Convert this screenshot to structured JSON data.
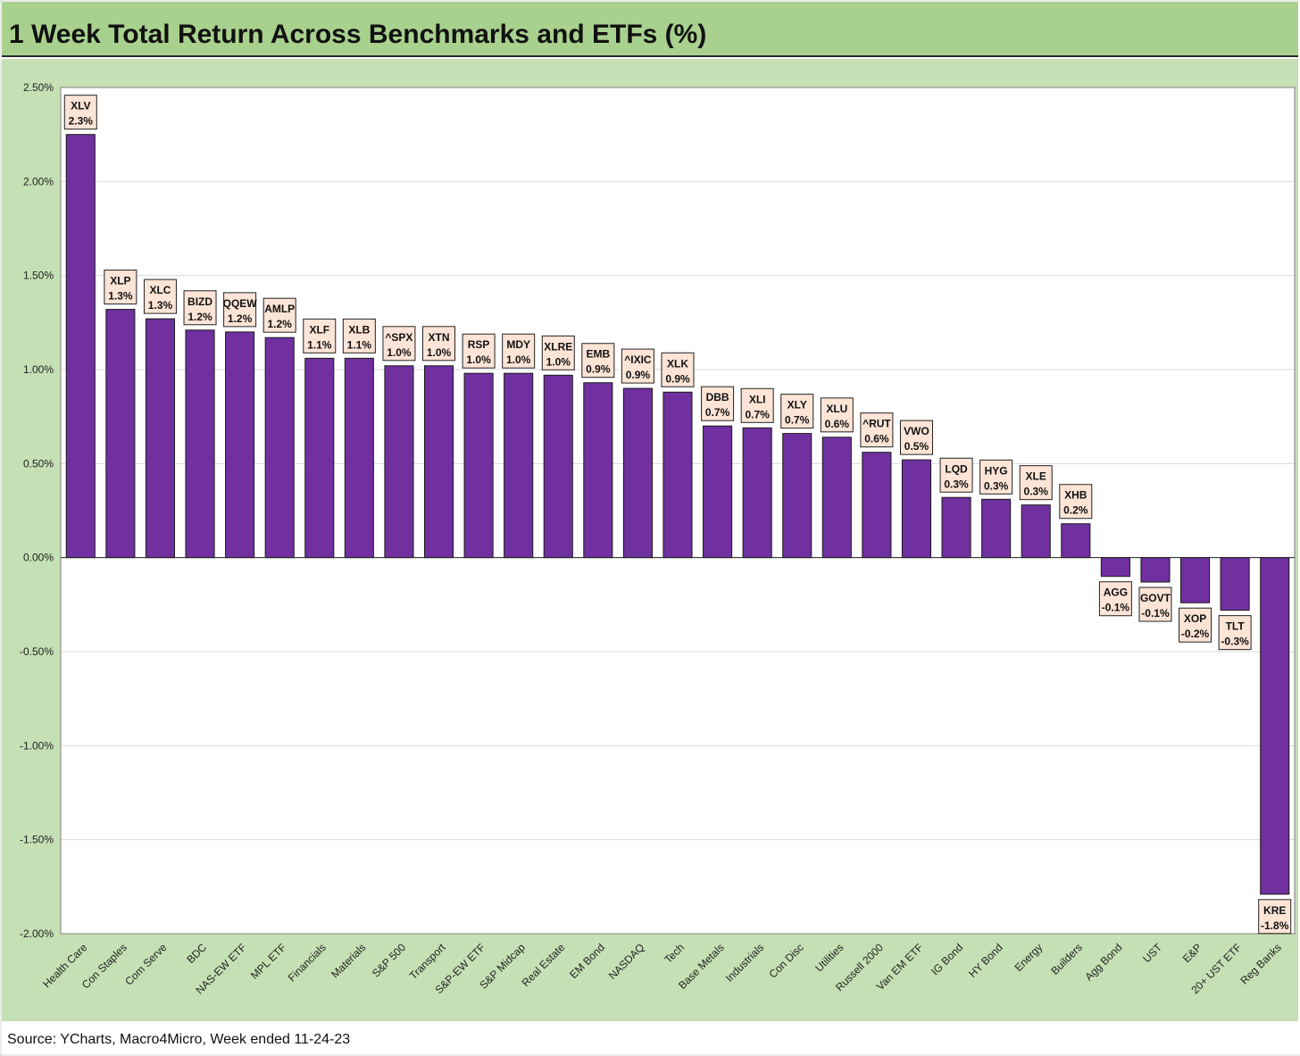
{
  "title": "1 Week Total Return Across Benchmarks and ETFs (%)",
  "source": "Source: YCharts, Macro4Micro, Week ended 11-24-23",
  "colors": {
    "title_bar": "#a9d18e",
    "chart_background": "#c5e0b4",
    "plot_background": "#ffffff",
    "bar": "#7030a0",
    "label_box": "#fce4d6"
  },
  "chart_data": {
    "type": "bar",
    "title": "1 Week Total Return Across Benchmarks and ETFs (%)",
    "xlabel": "",
    "ylabel": "",
    "ylim": [
      -2.0,
      2.5
    ],
    "grid": true,
    "legend": "none",
    "y_ticks": [
      "2.50%",
      "2.00%",
      "1.50%",
      "1.00%",
      "0.50%",
      "0.00%",
      "-0.50%",
      "-1.00%",
      "-1.50%",
      "-2.00%"
    ],
    "y_tick_values": [
      2.5,
      2.0,
      1.5,
      1.0,
      0.5,
      0.0,
      -0.5,
      -1.0,
      -1.5,
      -2.0
    ],
    "categories": [
      "Health Care",
      "Con Staples",
      "Com Serve",
      "BDC",
      "NAS-EW ETF",
      "MPL ETF",
      "Financials",
      "Materials",
      "S&P 500",
      "Transport",
      "S&P-EW ETF",
      "S&P Midcap",
      "Real Estate",
      "EM Bond",
      "NASDAQ",
      "Tech",
      "Base Metals",
      "Industrials",
      "Con Disc",
      "Utilities",
      "Russell 2000",
      "Van EM ETF",
      "IG Bond",
      "HY Bond",
      "Energy",
      "Builders",
      "Agg Bond",
      "UST",
      "E&P",
      "20+ UST ETF",
      "Reg Banks"
    ],
    "tickers": [
      "XLV",
      "XLP",
      "XLC",
      "BIZD",
      "QQEW",
      "AMLP",
      "XLF",
      "XLB",
      "^SPX",
      "XTN",
      "RSP",
      "MDY",
      "XLRE",
      "EMB",
      "^IXIC",
      "XLK",
      "DBB",
      "XLI",
      "XLY",
      "XLU",
      "^RUT",
      "VWO",
      "LQD",
      "HYG",
      "XLE",
      "XHB",
      "AGG",
      "GOVT",
      "XOP",
      "TLT",
      "KRE"
    ],
    "data_labels": [
      "2.3%",
      "1.3%",
      "1.3%",
      "1.2%",
      "1.2%",
      "1.2%",
      "1.1%",
      "1.1%",
      "1.0%",
      "1.0%",
      "1.0%",
      "1.0%",
      "1.0%",
      "0.9%",
      "0.9%",
      "0.9%",
      "0.7%",
      "0.7%",
      "0.7%",
      "0.6%",
      "0.6%",
      "0.5%",
      "0.3%",
      "0.3%",
      "0.3%",
      "0.2%",
      "-0.1%",
      "-0.1%",
      "-0.2%",
      "-0.3%",
      "-1.8%"
    ],
    "values": [
      2.25,
      1.32,
      1.27,
      1.21,
      1.2,
      1.17,
      1.06,
      1.06,
      1.02,
      1.02,
      0.98,
      0.98,
      0.97,
      0.93,
      0.9,
      0.88,
      0.7,
      0.69,
      0.66,
      0.64,
      0.56,
      0.52,
      0.32,
      0.31,
      0.28,
      0.18,
      -0.1,
      -0.13,
      -0.24,
      -0.28,
      -1.79
    ]
  }
}
